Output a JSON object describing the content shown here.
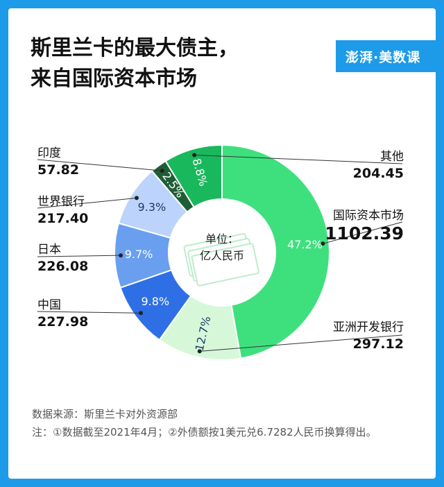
{
  "header": {
    "title_line1": "斯里兰卡的最大债主，",
    "title_line2": "来自国际资本市场",
    "brand": "澎湃·美数课"
  },
  "chart_data": {
    "type": "pie",
    "center_label_line1": "单位：",
    "center_label_line2": "亿人民币",
    "slices": [
      {
        "name": "国际资本市场",
        "value": "1102.39",
        "percent": 47.2,
        "pct_label": "47.2%",
        "color": "#3ee07e"
      },
      {
        "name": "亚洲开发银行",
        "value": "297.12",
        "percent": 12.7,
        "pct_label": "12.7%",
        "color": "#d6f8d9"
      },
      {
        "name": "中国",
        "value": "227.98",
        "percent": 9.8,
        "pct_label": "9.8%",
        "color": "#2f6fe6"
      },
      {
        "name": "日本",
        "value": "226.08",
        "percent": 9.7,
        "pct_label": "9.7%",
        "color": "#6a9ff0"
      },
      {
        "name": "世界银行",
        "value": "217.40",
        "percent": 9.3,
        "pct_label": "9.3%",
        "color": "#bcd4fb"
      },
      {
        "name": "印度",
        "value": "57.82",
        "percent": 2.5,
        "pct_label": "2.5%",
        "color": "#1f5e34"
      },
      {
        "name": "其他",
        "value": "204.45",
        "percent": 8.8,
        "pct_label": "8.8%",
        "color": "#19b85c"
      }
    ]
  },
  "footer": {
    "source": "数据来源：斯里兰卡对外资源部",
    "note": "注：①数据截至2021年4月；②外债额按1美元兑6.7282人民币换算得出。"
  }
}
